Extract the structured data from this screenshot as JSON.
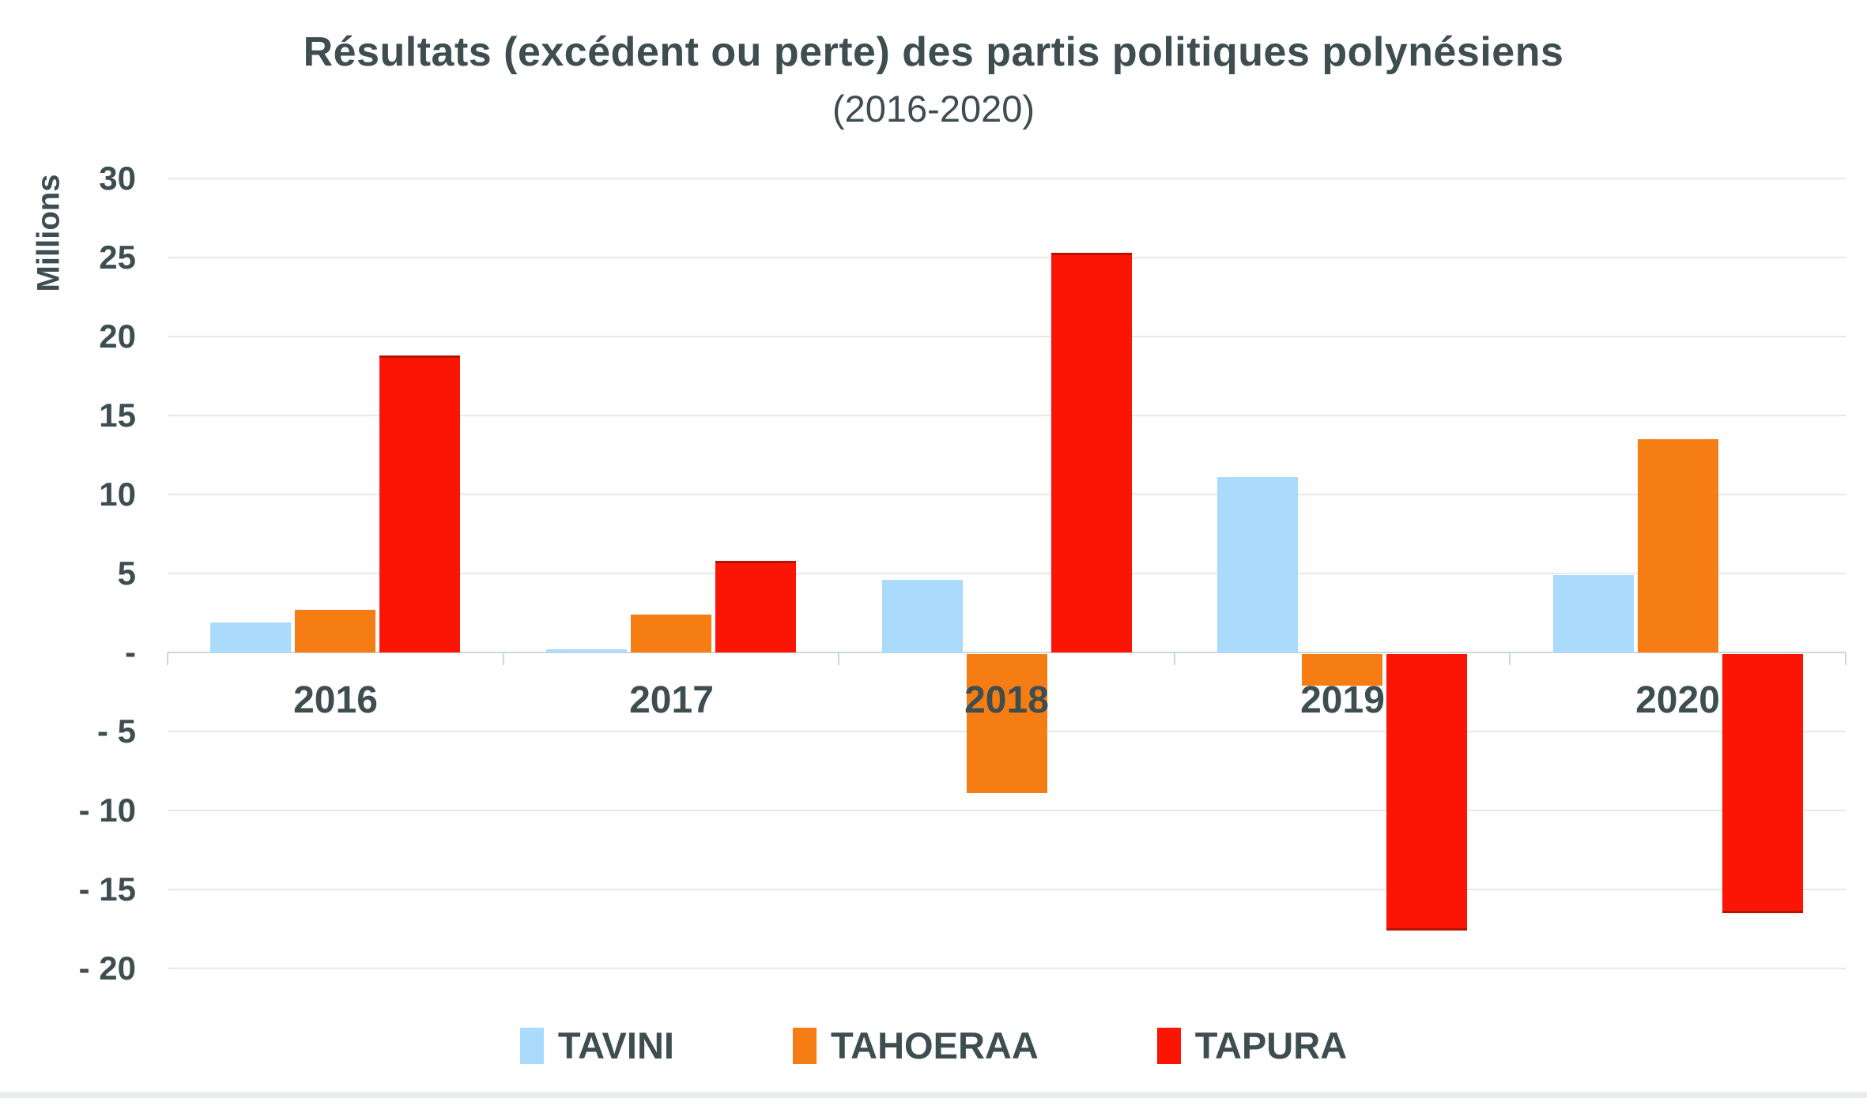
{
  "page": {
    "background": "#ffffff",
    "bottom_strip_color": "#e8eeec"
  },
  "chart_data": {
    "type": "bar",
    "title": "Résultats (excédent ou perte) des partis politiques polynésiens",
    "subtitle": "(2016-2020)",
    "ylabel": "Millions",
    "xlabel": "",
    "categories": [
      "2016",
      "2017",
      "2018",
      "2019",
      "2020"
    ],
    "series": [
      {
        "name": "TAVINI",
        "color": "#aadafc",
        "edge_color": null,
        "values": [
          1.9,
          0.2,
          4.6,
          11.1,
          4.9
        ]
      },
      {
        "name": "TAHOERAA",
        "color": "#f57d14",
        "edge_color": null,
        "values": [
          2.7,
          2.4,
          -8.8,
          -2.0,
          13.5
        ]
      },
      {
        "name": "TAPURA",
        "color": "#fc1505",
        "edge_color": "#b81300",
        "values": [
          18.8,
          5.8,
          25.3,
          -17.5,
          -16.4
        ]
      }
    ],
    "ylim": [
      -20,
      30
    ],
    "y_tick_step": 5,
    "y_tick_labels": [
      "30",
      "25",
      "20",
      "15",
      "10",
      "5",
      "-",
      "- 5",
      "- 10",
      "- 15",
      "- 20"
    ],
    "grid": true,
    "legend_position": "bottom",
    "text_color": "#3d4d50",
    "gridline_color": "#e3eaea",
    "axis_line_color": "#ccd8d8"
  }
}
